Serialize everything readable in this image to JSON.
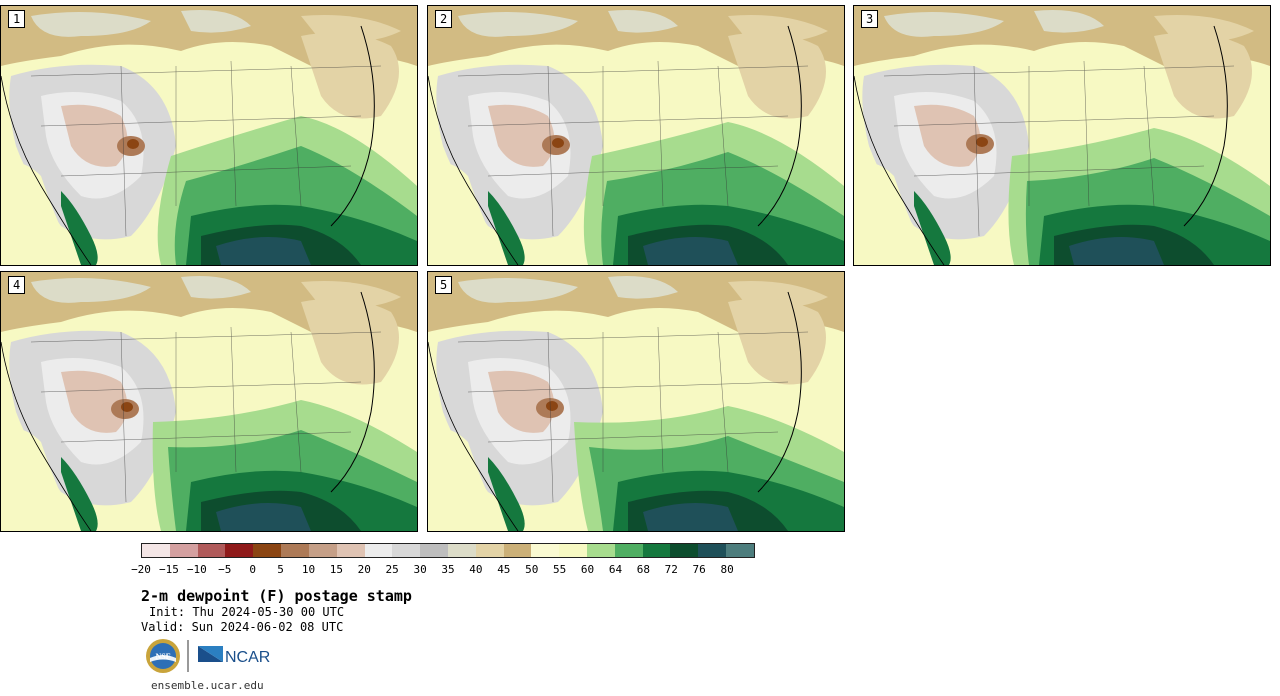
{
  "panels": [
    {
      "label": "1"
    },
    {
      "label": "2"
    },
    {
      "label": "3"
    },
    {
      "label": "4"
    },
    {
      "label": "5"
    }
  ],
  "colorbar": {
    "colors": [
      "#f4e6e6",
      "#d4a0a0",
      "#b05a5a",
      "#8f1a1a",
      "#8b4513",
      "#ad7a57",
      "#c59f87",
      "#dfc3b3",
      "#ececec",
      "#d8d8d8",
      "#bdbdbd",
      "#dcdcc8",
      "#e3d3a6",
      "#cbb078",
      "#fafad2",
      "#f7f9c3",
      "#a7dc8e",
      "#4fae62",
      "#15783e",
      "#0d4d2e",
      "#1f5059",
      "#4d7d7d"
    ],
    "ticks": [
      "−20",
      "−15",
      "−10",
      "−5",
      "0",
      "5",
      "10",
      "15",
      "20",
      "25",
      "30",
      "35",
      "40",
      "45",
      "50",
      "55",
      "60",
      "64",
      "68",
      "72",
      "76",
      "80"
    ]
  },
  "title": "2-m dewpoint (F) postage stamp",
  "init": "Init: Thu 2024-05-30 00 UTC",
  "valid": "Valid: Sun 2024-06-02 08 UTC",
  "logos": {
    "nsf": "NSF",
    "ncar": "NCAR"
  },
  "url": "ensemble.ucar.edu"
}
